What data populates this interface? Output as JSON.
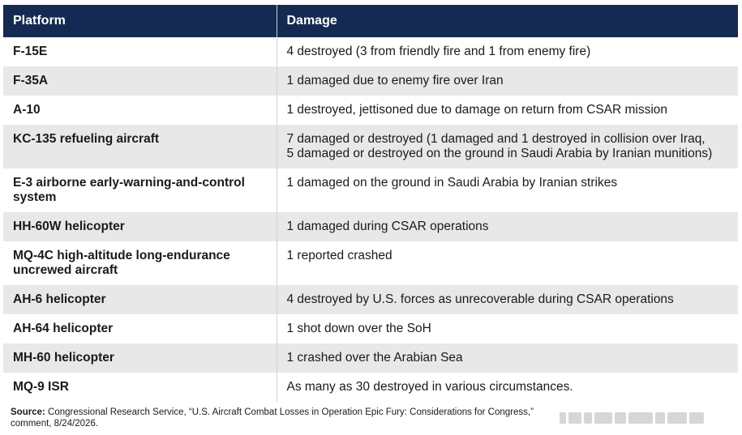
{
  "table": {
    "headers": {
      "platform": "Platform",
      "damage": "Damage"
    },
    "rows": [
      {
        "platform": "F-15E",
        "damage": "4 destroyed (3 from friendly fire and 1 from enemy fire)"
      },
      {
        "platform": "F-35A",
        "damage": "1 damaged due to enemy fire over Iran"
      },
      {
        "platform": "A-10",
        "damage": "1 destroyed, jettisoned due to damage on return from CSAR mission"
      },
      {
        "platform": "KC-135 refueling aircraft",
        "damage": "7 damaged or destroyed (1 damaged and 1 destroyed in collision over Iraq,\n5 damaged or destroyed on the ground in Saudi Arabia by Iranian munitions)"
      },
      {
        "platform": "E-3 airborne early-warning-and-control system",
        "damage": "1 damaged on the ground in Saudi Arabia by Iranian strikes"
      },
      {
        "platform": "HH-60W helicopter",
        "damage": "1 damaged during CSAR operations"
      },
      {
        "platform": "MQ-4C high-altitude long-endurance uncrewed aircraft",
        "damage": "1 reported crashed"
      },
      {
        "platform": "AH-6 helicopter",
        "damage": "4 destroyed by U.S. forces as unrecoverable during CSAR operations"
      },
      {
        "platform": "AH-64 helicopter",
        "damage": "1 shot down over the SoH"
      },
      {
        "platform": "MH-60 helicopter",
        "damage": "1 crashed over the Arabian Sea"
      },
      {
        "platform": "MQ-9 ISR",
        "damage": "As many as 30 destroyed in various circumstances."
      }
    ]
  },
  "footnote": {
    "label": "Source:",
    "text": " Congressional Research Service, “U.S. Aircraft Combat Losses in Operation Epic Fury: Considerations for Congress,” ",
    "text_line2": "comment, 8/24/2026."
  }
}
